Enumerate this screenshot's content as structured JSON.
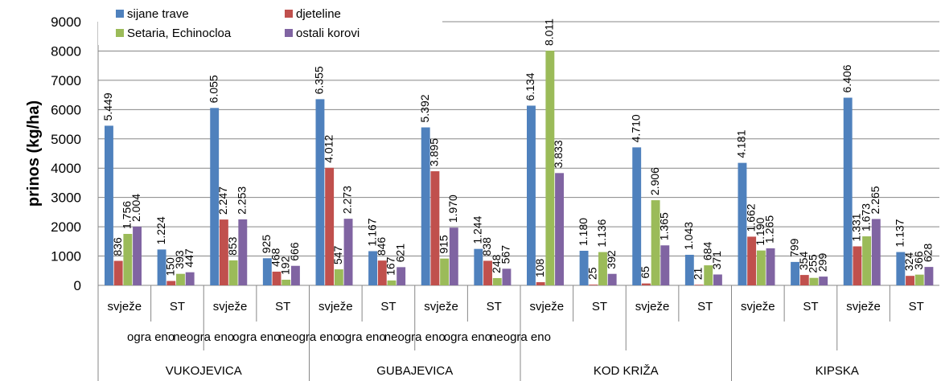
{
  "chart_data": {
    "type": "bar",
    "ylabel": "prinos (kg/ha)",
    "ylim": [
      0,
      9000
    ],
    "yticks": [
      "0",
      "1000",
      "2000",
      "3000",
      "4000",
      "5000",
      "6000",
      "7000",
      "8000",
      "9000"
    ],
    "grid": true,
    "legend_position": "top-left",
    "series": [
      {
        "name": "sijane trave",
        "color": "#4F81BD",
        "values": [
          5449,
          1224,
          6055,
          925,
          6355,
          1167,
          5392,
          1244,
          6134,
          1180,
          4710,
          1043,
          4181,
          799,
          6406,
          1137
        ],
        "labels": [
          "5.449",
          "1.224",
          "6.055",
          "925",
          "6.355",
          "1.167",
          "5.392",
          "1.244",
          "6.134",
          "1.180",
          "4.710",
          "1.043",
          "4.181",
          "799",
          "6.406",
          "1.137"
        ]
      },
      {
        "name": "djeteline",
        "color": "#C0504D",
        "values": [
          836,
          150,
          2247,
          468,
          4012,
          846,
          3895,
          838,
          108,
          25,
          65,
          21,
          1662,
          354,
          1331,
          324
        ],
        "labels": [
          "836",
          "150",
          "2.247",
          "468",
          "4.012",
          "846",
          "3.895",
          "838",
          "108",
          "25",
          "65",
          "21",
          "1.662",
          "354",
          "1.331",
          "324"
        ]
      },
      {
        "name": "Setaria, Echinocloa",
        "color": "#9BBB59",
        "values": [
          1756,
          393,
          853,
          192,
          547,
          167,
          915,
          248,
          8011,
          1136,
          2906,
          684,
          1190,
          255,
          1673,
          366
        ],
        "labels": [
          "1.756",
          "393",
          "853",
          "192",
          "547",
          "167",
          "915",
          "248",
          "8.011",
          "1.136",
          "2.906",
          "684",
          "1.190",
          "255",
          "1.673",
          "366"
        ]
      },
      {
        "name": "ostali korovi",
        "color": "#8064A2",
        "values": [
          2004,
          447,
          2253,
          666,
          2273,
          621,
          1970,
          567,
          3833,
          392,
          1365,
          371,
          1265,
          299,
          2265,
          628
        ],
        "labels": [
          "2.004",
          "447",
          "2.253",
          "666",
          "2.273",
          "621",
          "1.970",
          "567",
          "3.833",
          "392",
          "1.365",
          "371",
          "1.265",
          "299",
          "2.265",
          "628"
        ]
      }
    ],
    "categories_level1": [
      "svježe",
      "ST",
      "svježe",
      "ST",
      "svježe",
      "ST",
      "svježe",
      "ST",
      "svježe",
      "ST",
      "svježe",
      "ST",
      "svježe",
      "ST",
      "svježe",
      "ST"
    ],
    "categories_level2": [
      "ogra eno",
      "neogra eno",
      "ogra eno",
      "neogra eno",
      "ogra eno",
      "neogra eno",
      "ogra eno",
      "neogra eno"
    ],
    "categories_level3": [
      "VUKOJEVICA",
      "GUBAJEVICA",
      "KOD KRIŽA",
      "KIPSKA"
    ]
  }
}
